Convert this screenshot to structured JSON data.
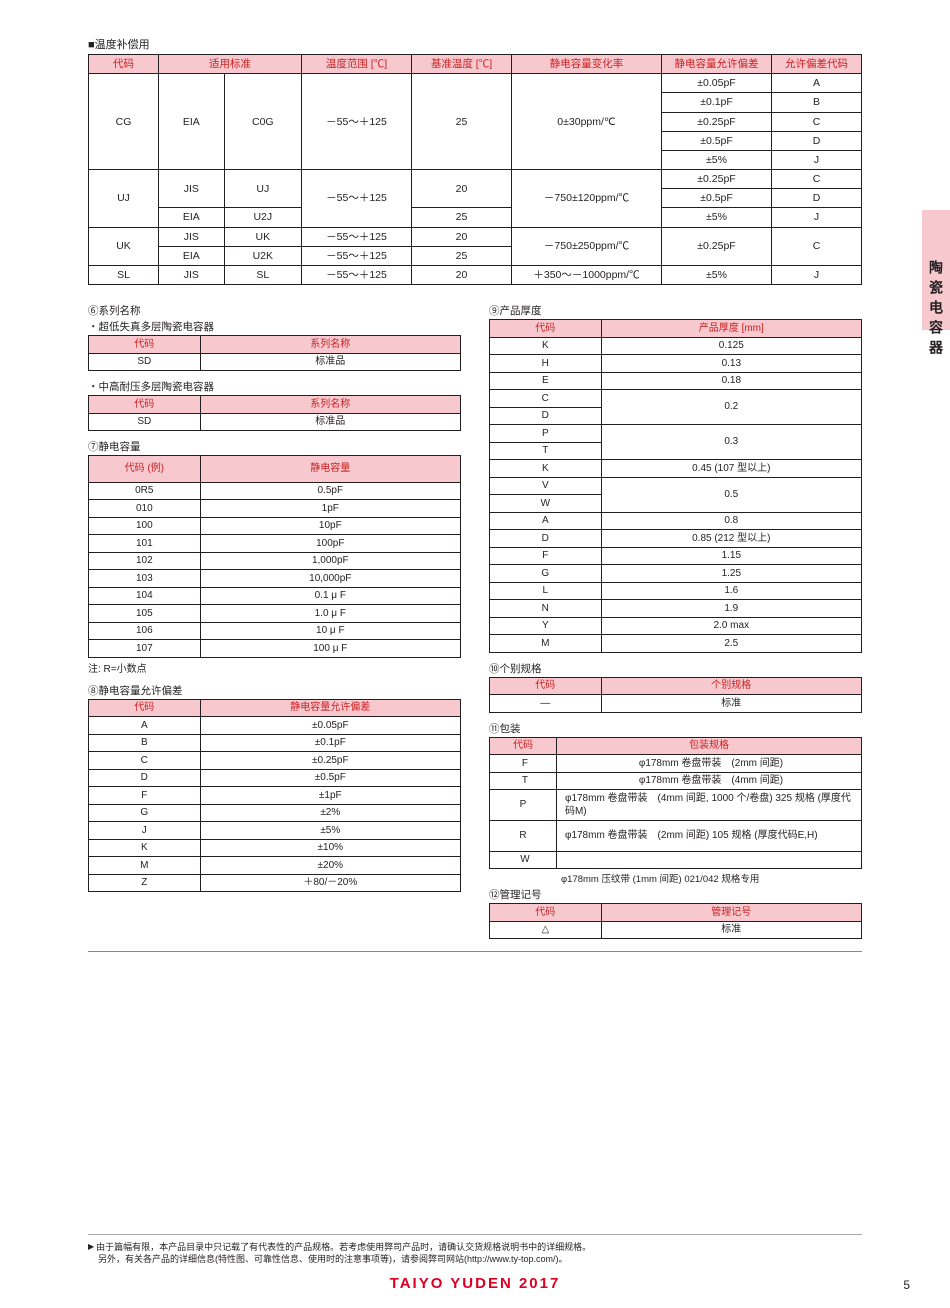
{
  "side_label": "陶瓷电容器",
  "section_temp_title": "■温度补偿用",
  "main_table": {
    "headers": [
      "代码",
      "适用标准",
      "温度范围 [℃]",
      "基准温度 [℃]",
      "静电容量变化率",
      "静电容量允许偏差",
      "允许偏差代码"
    ]
  },
  "cg": {
    "code": "CG",
    "std": "EIA",
    "cls": "C0G",
    "range": "－55～＋125",
    "base": "25",
    "rate": "0±30ppm/℃",
    "tol": [
      "±0.05pF",
      "±0.1pF",
      "±0.25pF",
      "±0.5pF",
      "±5%"
    ],
    "tcode": [
      "A",
      "B",
      "C",
      "D",
      "J"
    ]
  },
  "uj": {
    "code": "UJ",
    "range": "－55～＋125",
    "rate": "－750±120ppm/℃",
    "rows": [
      {
        "std": "JIS",
        "cls": "UJ",
        "base": "20",
        "tol": "±0.25pF",
        "tc": "C"
      },
      {
        "std": "",
        "cls": "",
        "base": "",
        "tol": "±0.5pF",
        "tc": "D"
      },
      {
        "std": "EIA",
        "cls": "U2J",
        "base": "25",
        "tol": "±5%",
        "tc": "J"
      }
    ]
  },
  "uk": {
    "code": "UK",
    "rate": "－750±250ppm/℃",
    "tol": "±0.25pF",
    "tc": "C",
    "rows": [
      {
        "std": "JIS",
        "cls": "UK",
        "range": "－55～＋125",
        "base": "20"
      },
      {
        "std": "EIA",
        "cls": "U2K",
        "range": "－55～＋125",
        "base": "25"
      }
    ]
  },
  "sl": {
    "code": "SL",
    "std": "JIS",
    "cls": "SL",
    "range": "－55～＋125",
    "base": "20",
    "rate": "＋350～－1000ppm/℃",
    "tol": "±5%",
    "tc": "J"
  },
  "sec6_title": "⑥系列名称",
  "sec6a_title": "・超低失真多层陶瓷电容器",
  "sec6a_h": [
    "代码",
    "系列名称"
  ],
  "sec6a_r": [
    "SD",
    "标准品"
  ],
  "sec6b_title": "・中高耐压多层陶瓷电容器",
  "sec6b_h": [
    "代码",
    "系列名称"
  ],
  "sec6b_r": [
    "SD",
    "标准品"
  ],
  "sec7_title": "⑦静电容量",
  "sec7_h": [
    "代码 (例)",
    "静电容量"
  ],
  "sec7_rows": [
    [
      "0R5",
      "0.5pF"
    ],
    [
      "010",
      "1pF"
    ],
    [
      "100",
      "10pF"
    ],
    [
      "101",
      "100pF"
    ],
    [
      "102",
      "1,000pF"
    ],
    [
      "103",
      "10,000pF"
    ],
    [
      "104",
      "0.1 μ F"
    ],
    [
      "105",
      "1.0 μ F"
    ],
    [
      "106",
      "10 μ F"
    ],
    [
      "107",
      "100 μ F"
    ]
  ],
  "sec7_note": "注: R=小数点",
  "sec8_title": "⑧静电容量允许偏差",
  "sec8_h": [
    "代码",
    "静电容量允许偏差"
  ],
  "sec8_rows": [
    [
      "A",
      "±0.05pF"
    ],
    [
      "B",
      "±0.1pF"
    ],
    [
      "C",
      "±0.25pF"
    ],
    [
      "D",
      "±0.5pF"
    ],
    [
      "F",
      "±1pF"
    ],
    [
      "G",
      "±2%"
    ],
    [
      "J",
      "±5%"
    ],
    [
      "K",
      "±10%"
    ],
    [
      "M",
      "±20%"
    ],
    [
      "Z",
      "＋80/－20%"
    ]
  ],
  "sec9_title": "⑨产品厚度",
  "sec9_h": [
    "代码",
    "产品厚度 [mm]"
  ],
  "sec9_rows": [
    [
      "K",
      "0.125"
    ],
    [
      "H",
      "0.13"
    ],
    [
      "E",
      "0.18"
    ],
    [
      "C",
      "0.2"
    ],
    [
      "D",
      ""
    ],
    [
      "P",
      "0.3"
    ],
    [
      "T",
      ""
    ],
    [
      "K",
      "0.45 (107 型以上)"
    ],
    [
      "V",
      "0.5"
    ],
    [
      "W",
      ""
    ],
    [
      "A",
      "0.8"
    ],
    [
      "D",
      "0.85 (212 型以上)"
    ],
    [
      "F",
      "1.15"
    ],
    [
      "G",
      "1.25"
    ],
    [
      "L",
      "1.6"
    ],
    [
      "N",
      "1.9"
    ],
    [
      "Y",
      "2.0 max"
    ],
    [
      "M",
      "2.5"
    ]
  ],
  "sec9_merge": {
    "0.2": [
      "C",
      "D"
    ],
    "0.3": [
      "P",
      "T"
    ],
    "0.5": [
      "V",
      "W"
    ]
  },
  "sec10_title": "⑩个别规格",
  "sec10_h": [
    "代码",
    "个别规格"
  ],
  "sec10_r": [
    "—",
    "标准"
  ],
  "sec11_title": "⑪包装",
  "sec11_h": [
    "代码",
    "包装规格"
  ],
  "sec11_rows": [
    [
      "F",
      "φ178mm 卷盘带装　(2mm 间距)"
    ],
    [
      "T",
      "φ178mm 卷盘带装　(4mm 间距)"
    ],
    [
      "P",
      "φ178mm 卷盘带装　(4mm 间距, 1000 个/卷盘) 325 规格 (厚度代码M)"
    ],
    [
      "R",
      "φ178mm 卷盘带装　(2mm 间距) 105 规格 (厚度代码E,H)"
    ],
    [
      "W",
      ""
    ]
  ],
  "sec11_wnote": "φ178mm 压纹带 (1mm 间距) 021/042 规格专用",
  "sec12_title": "⑫管理记号",
  "sec12_h": [
    "代码",
    "管理记号"
  ],
  "sec12_r": [
    "△",
    "标准"
  ],
  "footer1": "由于篇幅有限，本产品目录中只记载了有代表性的产品规格。若考虑使用弊司产品时，请确认交货规格说明书中的详细规格。",
  "footer2": "另外，有关各产品的详细信息(特性图、可靠性信息、使用时的注意事项等)，请参阅弊司网站(http://www.ty-top.com/)。",
  "brand": "TAIYO YUDEN  2017",
  "page_num": "5"
}
